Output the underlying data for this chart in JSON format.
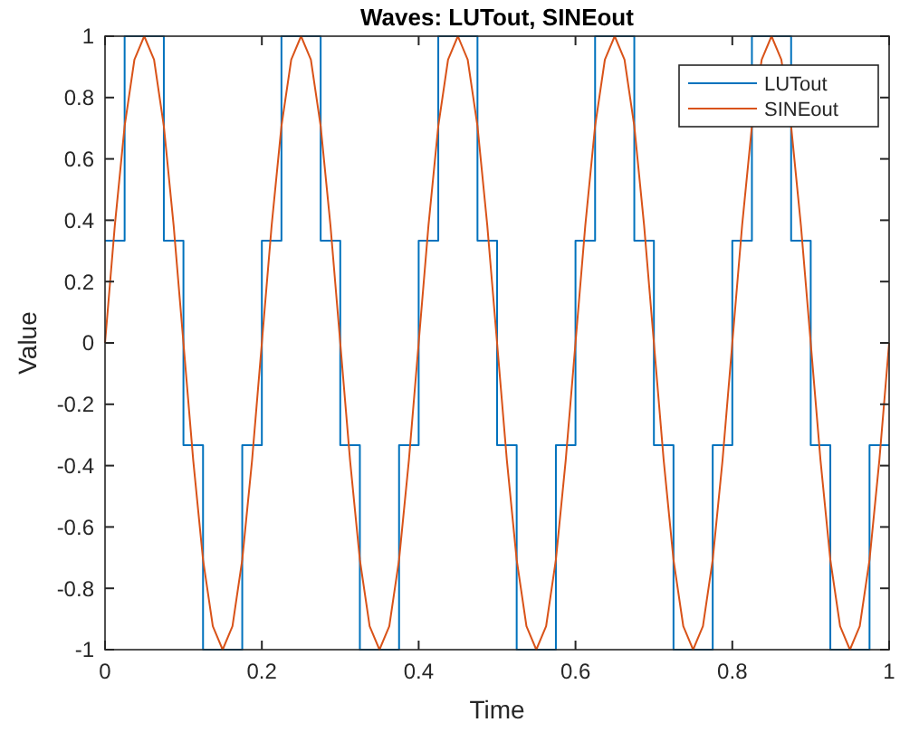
{
  "chart_data": {
    "type": "line",
    "title": "Waves: LUTout, SINEout",
    "xlabel": "Time",
    "ylabel": "Value",
    "xlim": [
      0,
      1
    ],
    "xticks": [
      0,
      0.2,
      0.4,
      0.6,
      0.8,
      1
    ],
    "ylim": [
      -1,
      1
    ],
    "yticks": [
      -1,
      -0.8,
      -0.6,
      -0.4,
      -0.2,
      0,
      0.2,
      0.4,
      0.6,
      0.8,
      1
    ],
    "grid": false,
    "legend": "top right",
    "marker": "none",
    "line_style": "solid",
    "series": [
      {
        "name": "LUTout",
        "type": "step",
        "color": "#0072bd",
        "x": [
          0,
          0.025,
          0.075,
          0.1,
          0.125,
          0.175,
          0.2,
          0.225,
          0.275,
          0.3,
          0.325,
          0.375,
          0.4,
          0.425,
          0.475,
          0.5,
          0.525,
          0.575,
          0.6,
          0.625,
          0.675,
          0.7,
          0.725,
          0.775,
          0.8,
          0.825,
          0.875,
          0.9,
          0.925,
          0.975,
          1
        ],
        "values": [
          0.333,
          1,
          0.333,
          -0.333,
          -1,
          -0.333,
          0.333,
          1,
          0.333,
          -0.333,
          -1,
          -0.333,
          0.333,
          1,
          0.333,
          -0.333,
          -1,
          -0.333,
          0.333,
          1,
          0.333,
          -0.333,
          -1,
          -0.333,
          0.333,
          1,
          0.333,
          -0.333,
          -1,
          -0.333,
          -0.333
        ]
      },
      {
        "name": "SINEout",
        "type": "line",
        "color": "#d95319",
        "x": [
          0,
          0.0125,
          0.025,
          0.0375,
          0.05,
          0.0625,
          0.075,
          0.0875,
          0.1,
          0.1125,
          0.125,
          0.1375,
          0.15,
          0.1625,
          0.175,
          0.1875,
          0.2,
          0.2125,
          0.225,
          0.2375,
          0.25,
          0.2625,
          0.275,
          0.2875,
          0.3,
          0.3125,
          0.325,
          0.3375,
          0.35,
          0.3625,
          0.375,
          0.3875,
          0.4,
          0.4125,
          0.425,
          0.4375,
          0.45,
          0.4625,
          0.475,
          0.4875,
          0.5,
          0.5125,
          0.525,
          0.5375,
          0.55,
          0.5625,
          0.575,
          0.5875,
          0.6,
          0.6125,
          0.625,
          0.6375,
          0.65,
          0.6625,
          0.675,
          0.6875,
          0.7,
          0.7125,
          0.725,
          0.7375,
          0.75,
          0.7625,
          0.775,
          0.7875,
          0.8,
          0.8125,
          0.825,
          0.8375,
          0.85,
          0.8625,
          0.875,
          0.8875,
          0.9,
          0.9125,
          0.925,
          0.9375,
          0.95,
          0.9625,
          0.975,
          0.9875,
          1
        ],
        "values": [
          0,
          0.383,
          0.707,
          0.924,
          1,
          0.924,
          0.707,
          0.383,
          0,
          -0.383,
          -0.707,
          -0.924,
          -1,
          -0.924,
          -0.707,
          -0.383,
          0,
          0.383,
          0.707,
          0.924,
          1,
          0.924,
          0.707,
          0.383,
          0,
          -0.383,
          -0.707,
          -0.924,
          -1,
          -0.924,
          -0.707,
          -0.383,
          0,
          0.383,
          0.707,
          0.924,
          1,
          0.924,
          0.707,
          0.383,
          0,
          -0.383,
          -0.707,
          -0.924,
          -1,
          -0.924,
          -0.707,
          -0.383,
          0,
          0.383,
          0.707,
          0.924,
          1,
          0.924,
          0.707,
          0.383,
          0,
          -0.383,
          -0.707,
          -0.924,
          -1,
          -0.924,
          -0.707,
          -0.383,
          0,
          0.383,
          0.707,
          0.924,
          1,
          0.924,
          0.707,
          0.383,
          0,
          -0.383,
          -0.707,
          -0.924,
          -1,
          -0.924,
          -0.707,
          -0.383,
          0
        ]
      }
    ]
  }
}
